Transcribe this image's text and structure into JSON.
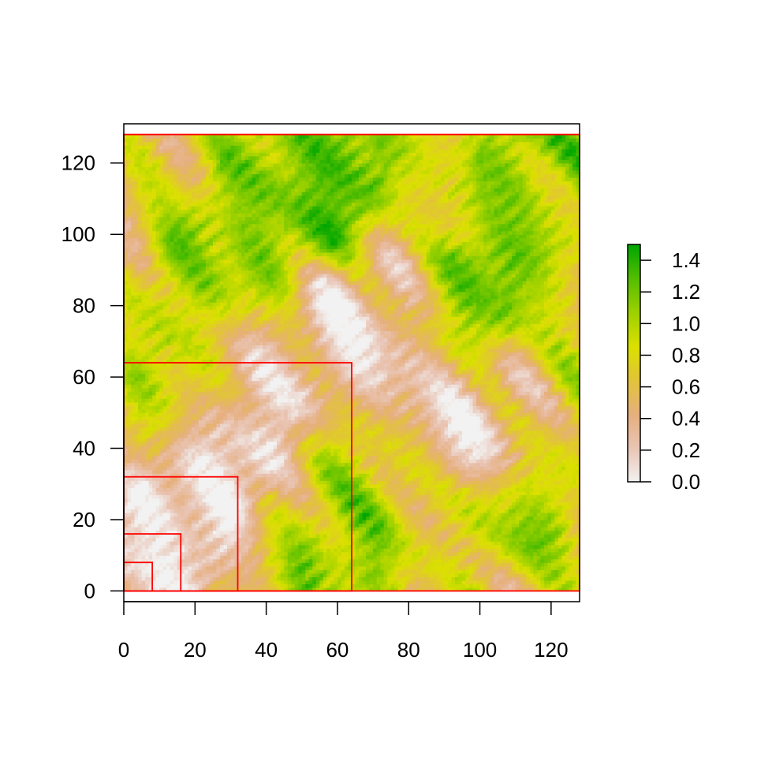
{
  "chart_data": {
    "type": "heatmap",
    "title": "",
    "xlabel": "",
    "ylabel": "",
    "xlim": [
      0,
      128
    ],
    "ylim": [
      -3,
      131
    ],
    "x_ticks": [
      0,
      20,
      40,
      60,
      80,
      100,
      120
    ],
    "y_ticks": [
      0,
      20,
      40,
      60,
      80,
      100,
      120
    ],
    "x_tick_labels": [
      "0",
      "20",
      "40",
      "60",
      "80",
      "100",
      "120"
    ],
    "y_tick_labels": [
      "0",
      "20",
      "40",
      "60",
      "80",
      "100",
      "120"
    ],
    "raster_extent": {
      "xmin": 0,
      "xmax": 128,
      "ymin": 0,
      "ymax": 128
    },
    "grid_resolution": 128,
    "value_range": [
      0.0,
      1.5
    ],
    "colorbar": {
      "ticks": [
        0.0,
        0.2,
        0.4,
        0.6,
        0.8,
        1.0,
        1.2,
        1.4
      ],
      "tick_labels": [
        "0.0",
        "0.2",
        "0.4",
        "0.6",
        "0.8",
        "1.0",
        "1.2",
        "1.4"
      ],
      "range": [
        0.0,
        1.5
      ],
      "colors": [
        "#f2f2f2",
        "#e9c5b5",
        "#e6af7d",
        "#e2c33a",
        "#dbe000",
        "#9dd100",
        "#54be00",
        "#00a600"
      ]
    },
    "field_features": [
      {
        "x": 50,
        "y": 110,
        "value": 1.3
      },
      {
        "x": 62,
        "y": 121,
        "value": 1.25
      },
      {
        "x": 40,
        "y": 122,
        "value": 1.0
      },
      {
        "x": 33,
        "y": 93,
        "value": 1.1
      },
      {
        "x": 22,
        "y": 88,
        "value": 1.0
      },
      {
        "x": 97,
        "y": 82,
        "value": 1.35
      },
      {
        "x": 112,
        "y": 120,
        "value": 1.15
      },
      {
        "x": 120,
        "y": 108,
        "value": 0.95
      },
      {
        "x": 14,
        "y": 58,
        "value": 0.95
      },
      {
        "x": 60,
        "y": 6,
        "value": 1.1
      },
      {
        "x": 67,
        "y": 33,
        "value": 0.95
      },
      {
        "x": 112,
        "y": 22,
        "value": 1.05
      },
      {
        "x": 124,
        "y": 52,
        "value": 0.85
      },
      {
        "x": 30,
        "y": 40,
        "value": 0.05
      },
      {
        "x": 15,
        "y": 20,
        "value": 0.1
      },
      {
        "x": 8,
        "y": 8,
        "value": 0.15
      },
      {
        "x": 102,
        "y": 46,
        "value": 0.05
      },
      {
        "x": 60,
        "y": 70,
        "value": 0.2
      },
      {
        "x": 75,
        "y": 78,
        "value": 0.15
      },
      {
        "x": 85,
        "y": 55,
        "value": 0.3
      },
      {
        "x": 40,
        "y": 65,
        "value": 0.3
      }
    ],
    "overlay_rectangles": [
      {
        "xmin": 0,
        "ymin": 0,
        "xmax": 8,
        "ymax": 8,
        "color": "#ff0000"
      },
      {
        "xmin": 0,
        "ymin": 0,
        "xmax": 16,
        "ymax": 16,
        "color": "#ff0000"
      },
      {
        "xmin": 0,
        "ymin": 0,
        "xmax": 32,
        "ymax": 32,
        "color": "#ff0000"
      },
      {
        "xmin": 0,
        "ymin": 0,
        "xmax": 64,
        "ymax": 64,
        "color": "#ff0000"
      },
      {
        "xmin": 0,
        "ymin": 0,
        "xmax": 128,
        "ymax": 128,
        "color": "#ff0000"
      }
    ],
    "legend_placement": "right",
    "grid": false
  }
}
